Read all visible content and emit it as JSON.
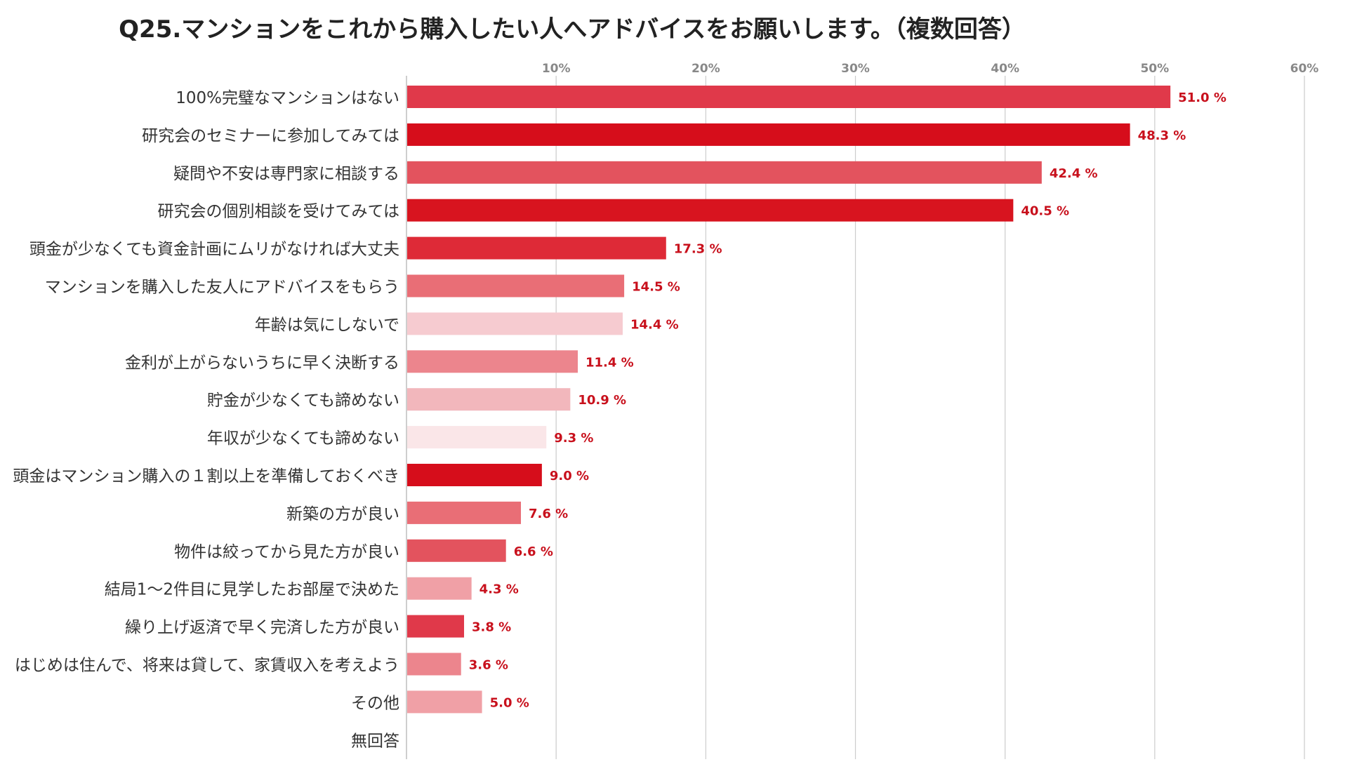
{
  "chart_data": {
    "type": "bar",
    "orientation": "horizontal",
    "title": "Q25.マンションをこれから購入したい人へアドバイスをお願いします。（複数回答）",
    "xlabel": "",
    "ylabel": "",
    "xlim": [
      0,
      60
    ],
    "x_ticks": [
      "10%",
      "20%",
      "30%",
      "40%",
      "50%",
      "60%"
    ],
    "x_tick_values": [
      10,
      20,
      30,
      40,
      50,
      60
    ],
    "grid": true,
    "value_suffix": " %",
    "categories": [
      "100%完璧なマンションはない",
      "研究会のセミナーに参加してみては",
      "疑問や不安は専門家に相談する",
      "研究会の個別相談を受けてみては",
      "頭金が少なくても資金計画にムリがなければ大丈夫",
      "マンションを購入した友人にアドバイスをもらう",
      "年齢は気にしないで",
      "金利が上がらないうちに早く決断する",
      "貯金が少なくても諦めない",
      "年収が少なくても諦めない",
      "頭金はマンション購入の１割以上を準備しておくべき",
      "新築の方が良い",
      "物件は絞ってから見た方が良い",
      "結局1～2件目に見学したお部屋で決めた",
      "繰り上げ返済で早く完済した方が良い",
      "はじめは住んで、将来は貸して、家賃収入を考えよう",
      "その他",
      "無回答"
    ],
    "values": [
      51.0,
      48.3,
      42.4,
      40.5,
      17.3,
      14.5,
      14.4,
      11.4,
      10.9,
      9.3,
      9.0,
      7.6,
      6.6,
      4.3,
      3.8,
      3.6,
      5.0,
      null
    ],
    "value_labels": [
      "51.0 %",
      "48.3 %",
      "42.4 %",
      "40.5 %",
      "17.3 %",
      "14.5 %",
      "14.4 %",
      "11.4 %",
      "10.9 %",
      "9.3 %",
      "9.0 %",
      "7.6 %",
      "6.6 %",
      "4.3 %",
      "3.8 %",
      "3.6 %",
      "5.0 %",
      ""
    ],
    "colors": [
      "#e0394a",
      "#d60d1b",
      "#e3535e",
      "#d8141f",
      "#de2a37",
      "#e96e76",
      "#f6cbd0",
      "#ec858d",
      "#f2b7bc",
      "#fae6e8",
      "#d60d1b",
      "#e96e76",
      "#e3535e",
      "#f0a0a6",
      "#e0394a",
      "#ec858d",
      "#f0a0a6",
      "#ffffff"
    ],
    "label_color": "#c8101c",
    "axis_color": "#bdbdbd",
    "grid_color": "#cccccc",
    "tick_color": "#888888",
    "category_color": "#333333"
  }
}
